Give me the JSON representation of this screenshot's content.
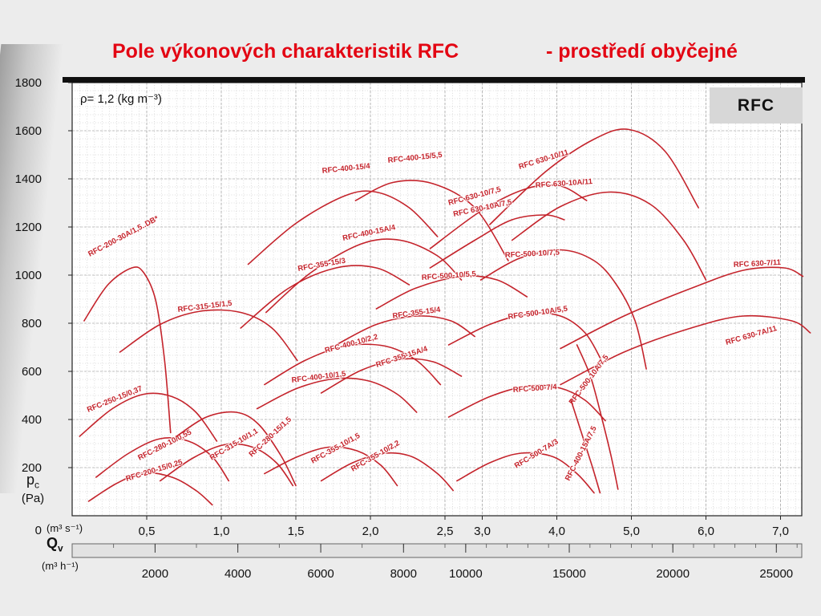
{
  "title": {
    "main": "Pole výkonových charakteristik RFC",
    "suffix": "- prostředí obyčejné"
  },
  "annotations": {
    "density": "ρ= 1,2 (kg m⁻³)",
    "series_box": "RFC"
  },
  "axes": {
    "y_label_main": "p",
    "y_label_sub": "c",
    "y_label_unit": "(Pa)",
    "x1_unit": "(m³ s⁻¹)",
    "x2_label_main": "Q",
    "x2_label_sub": "v",
    "x2_unit": "(m³ h⁻¹)"
  },
  "colors": {
    "curve_red": "#c4232b",
    "title_red": "#e30613"
  },
  "chart_data": {
    "type": "line",
    "title": "Pole výkonových charakteristik RFC - prostředí obyčejné",
    "xlabel": "Qv (m³ s⁻¹) / (m³ h⁻¹)",
    "ylabel": "pc (Pa)",
    "ylim": [
      0,
      1800
    ],
    "grid": true,
    "x_scale_note": "piecewise linear: 0-2.5 m3/s expanded, above 2.5 m3/s compressed 2x",
    "y_ticks": [
      1800,
      1600,
      1400,
      1200,
      1000,
      800,
      600,
      400,
      200,
      0
    ],
    "x1": {
      "unit": "m³/s",
      "ticks": [
        {
          "v": "0,5",
          "q": 0.5
        },
        {
          "v": "1,0",
          "q": 1.0
        },
        {
          "v": "1,5",
          "q": 1.5
        },
        {
          "v": "2,0",
          "q": 2.0
        },
        {
          "v": "2,5",
          "q": 2.5
        },
        {
          "v": "3,0",
          "q": 3.0
        },
        {
          "v": "4,0",
          "q": 4.0
        },
        {
          "v": "5,0",
          "q": 5.0
        },
        {
          "v": "6,0",
          "q": 6.0
        },
        {
          "v": "7,0",
          "q": 7.0
        }
      ]
    },
    "x2": {
      "unit": "m³/h",
      "ticks": [
        {
          "v": "2000",
          "q": 0.556
        },
        {
          "v": "4000",
          "q": 1.111
        },
        {
          "v": "6000",
          "q": 1.667
        },
        {
          "v": "8000",
          "q": 2.222
        },
        {
          "v": "10000",
          "q": 2.778
        },
        {
          "v": "15000",
          "q": 4.167
        },
        {
          "v": "20000",
          "q": 5.556
        },
        {
          "v": "25000",
          "q": 6.944
        }
      ]
    },
    "series": [
      {
        "name": "RFC-200-30A/1,5..DB*",
        "label": {
          "x": 112,
          "y": 320,
          "rot": -28
        },
        "points": [
          [
            0.08,
            810
          ],
          [
            0.24,
            960
          ],
          [
            0.4,
            1030
          ],
          [
            0.48,
            1010
          ],
          [
            0.56,
            895
          ],
          [
            0.62,
            645
          ],
          [
            0.66,
            345
          ]
        ]
      },
      {
        "name": "RFC-400-15/4",
        "label": {
          "x": 402,
          "y": 216,
          "rot": -6
        },
        "points": [
          [
            1.18,
            1045
          ],
          [
            1.5,
            1215
          ],
          [
            1.83,
            1330
          ],
          [
            2.04,
            1345
          ],
          [
            2.26,
            1280
          ],
          [
            2.45,
            1160
          ]
        ]
      },
      {
        "name": "RFC-400-15/5,5",
        "label": {
          "x": 484,
          "y": 203,
          "rot": -6
        },
        "points": [
          [
            1.9,
            1310
          ],
          [
            2.15,
            1385
          ],
          [
            2.42,
            1380
          ],
          [
            2.9,
            1280
          ],
          [
            3.35,
            1060
          ]
        ]
      },
      {
        "name": "RFC 630-10/11",
        "label": {
          "x": 648,
          "y": 211,
          "rot": -17
        },
        "points": [
          [
            3.1,
            1210
          ],
          [
            3.85,
            1430
          ],
          [
            4.5,
            1565
          ],
          [
            4.97,
            1605
          ],
          [
            5.45,
            1515
          ],
          [
            5.9,
            1280
          ]
        ]
      },
      {
        "name": "RFC 630-10/7,5",
        "label": {
          "x": 560,
          "y": 256,
          "rot": -15
        },
        "points": [
          [
            2.4,
            1110
          ],
          [
            3.0,
            1270
          ],
          [
            3.6,
            1360
          ],
          [
            4.05,
            1370
          ],
          [
            4.4,
            1310
          ]
        ]
      },
      {
        "name": "RFC 630-10A/11",
        "label": {
          "x": 668,
          "y": 234,
          "rot": -4
        },
        "points": [
          [
            3.4,
            1145
          ],
          [
            4.05,
            1285
          ],
          [
            4.7,
            1345
          ],
          [
            5.25,
            1295
          ],
          [
            5.7,
            1145
          ],
          [
            6.0,
            980
          ]
        ]
      },
      {
        "name": "RFC 630-10A/7,5",
        "label": {
          "x": 566,
          "y": 270,
          "rot": -12
        },
        "points": [
          [
            2.4,
            1030
          ],
          [
            2.9,
            1145
          ],
          [
            3.4,
            1230
          ],
          [
            3.85,
            1250
          ],
          [
            4.1,
            1230
          ]
        ]
      },
      {
        "name": "RFC-400-15A/4",
        "label": {
          "x": 428,
          "y": 300,
          "rot": -12
        },
        "points": [
          [
            1.3,
            845
          ],
          [
            1.6,
            1010
          ],
          [
            1.94,
            1130
          ],
          [
            2.2,
            1145
          ],
          [
            2.45,
            1080
          ],
          [
            2.72,
            980
          ]
        ]
      },
      {
        "name": "RFC-355-15/3",
        "label": {
          "x": 372,
          "y": 338,
          "rot": -10
        },
        "points": [
          [
            1.13,
            780
          ],
          [
            1.45,
            945
          ],
          [
            1.77,
            1030
          ],
          [
            2.04,
            1030
          ],
          [
            2.26,
            960
          ]
        ]
      },
      {
        "name": "RFC-500-10/5,5",
        "label": {
          "x": 526,
          "y": 349,
          "rot": -4
        },
        "points": [
          [
            2.04,
            860
          ],
          [
            2.3,
            945
          ],
          [
            2.72,
            995
          ],
          [
            3.2,
            980
          ],
          [
            3.6,
            910
          ]
        ]
      },
      {
        "name": "RFC-500-10/7,5",
        "label": {
          "x": 630,
          "y": 321,
          "rot": -3
        },
        "points": [
          [
            2.98,
            980
          ],
          [
            3.5,
            1070
          ],
          [
            4.05,
            1105
          ],
          [
            4.5,
            1060
          ],
          [
            4.8,
            960
          ],
          [
            5.05,
            810
          ],
          [
            5.2,
            610
          ]
        ]
      },
      {
        "name": "RFC 630-7/11",
        "label": {
          "x": 915,
          "y": 333,
          "rot": -3
        },
        "points": [
          [
            4.05,
            695
          ],
          [
            4.9,
            830
          ],
          [
            5.8,
            945
          ],
          [
            6.5,
            1020
          ],
          [
            7.05,
            1030
          ],
          [
            7.3,
            995
          ]
        ]
      },
      {
        "name": "RFC-315-15/1,5",
        "label": {
          "x": 222,
          "y": 389,
          "rot": -7
        },
        "points": [
          [
            0.32,
            680
          ],
          [
            0.59,
            795
          ],
          [
            0.86,
            850
          ],
          [
            1.13,
            845
          ],
          [
            1.34,
            780
          ],
          [
            1.51,
            645
          ]
        ]
      },
      {
        "name": "RFC-355-15/4",
        "label": {
          "x": 490,
          "y": 397,
          "rot": -8
        },
        "points": [
          [
            1.77,
            710
          ],
          [
            2.04,
            795
          ],
          [
            2.31,
            830
          ],
          [
            2.58,
            810
          ],
          [
            2.9,
            745
          ]
        ]
      },
      {
        "name": "RFC-500-10A/5,5",
        "label": {
          "x": 634,
          "y": 398,
          "rot": -8
        },
        "points": [
          [
            2.55,
            710
          ],
          [
            3.1,
            795
          ],
          [
            3.63,
            840
          ],
          [
            4.05,
            830
          ],
          [
            4.38,
            760
          ],
          [
            4.6,
            645
          ]
        ]
      },
      {
        "name": "RFC 630-7A/11",
        "label": {
          "x": 906,
          "y": 430,
          "rot": -16
        },
        "points": [
          [
            4.05,
            545
          ],
          [
            4.9,
            680
          ],
          [
            5.8,
            780
          ],
          [
            6.5,
            830
          ],
          [
            7.15,
            810
          ],
          [
            7.4,
            760
          ]
        ]
      },
      {
        "name": "RFC-400-10/2,2",
        "label": {
          "x": 406,
          "y": 440,
          "rot": -15
        },
        "points": [
          [
            1.29,
            545
          ],
          [
            1.56,
            645
          ],
          [
            1.83,
            705
          ],
          [
            2.1,
            705
          ],
          [
            2.31,
            645
          ],
          [
            2.47,
            545
          ]
        ]
      },
      {
        "name": "RFC-355-15A/4",
        "label": {
          "x": 470,
          "y": 458,
          "rot": -18
        },
        "points": [
          [
            1.67,
            510
          ],
          [
            1.94,
            605
          ],
          [
            2.2,
            650
          ],
          [
            2.42,
            640
          ],
          [
            2.72,
            580
          ]
        ]
      },
      {
        "name": "RFC-500-10A/7,5",
        "label": {
          "x": 714,
          "y": 505,
          "rot": -53
        },
        "points": [
          [
            4.27,
            710
          ],
          [
            4.45,
            580
          ],
          [
            4.6,
            410
          ],
          [
            4.73,
            245
          ],
          [
            4.82,
            110
          ]
        ]
      },
      {
        "name": "RFC-250-15/0,37",
        "label": {
          "x": 110,
          "y": 514,
          "rot": -22
        },
        "points": [
          [
            0.05,
            330
          ],
          [
            0.27,
            445
          ],
          [
            0.48,
            505
          ],
          [
            0.67,
            495
          ],
          [
            0.83,
            430
          ],
          [
            0.97,
            310
          ]
        ]
      },
      {
        "name": "RFC-400-10/1,5",
        "label": {
          "x": 364,
          "y": 477,
          "rot": -7
        },
        "points": [
          [
            1.24,
            445
          ],
          [
            1.51,
            530
          ],
          [
            1.77,
            570
          ],
          [
            1.99,
            560
          ],
          [
            2.18,
            505
          ],
          [
            2.31,
            430
          ]
        ]
      },
      {
        "name": "RFC-500-7/4",
        "label": {
          "x": 640,
          "y": 489,
          "rot": -4
        },
        "points": [
          [
            2.55,
            410
          ],
          [
            3.1,
            495
          ],
          [
            3.63,
            540
          ],
          [
            4.05,
            530
          ],
          [
            4.38,
            480
          ],
          [
            4.65,
            395
          ]
        ]
      },
      {
        "name": "RFC-280-10/0,55",
        "label": {
          "x": 174,
          "y": 574,
          "rot": -27
        },
        "points": [
          [
            0.16,
            160
          ],
          [
            0.38,
            260
          ],
          [
            0.59,
            320
          ],
          [
            0.78,
            310
          ],
          [
            0.94,
            245
          ],
          [
            1.05,
            145
          ]
        ]
      },
      {
        "name": "RFC-315-10/1,1",
        "label": {
          "x": 264,
          "y": 574,
          "rot": -31
        },
        "points": [
          [
            0.59,
            145
          ],
          [
            0.81,
            240
          ],
          [
            1.02,
            295
          ],
          [
            1.21,
            285
          ],
          [
            1.37,
            220
          ],
          [
            1.48,
            125
          ]
        ]
      },
      {
        "name": "RFC-280-15/1,5",
        "label": {
          "x": 314,
          "y": 570,
          "rot": -43
        },
        "points": [
          [
            0.7,
            330
          ],
          [
            0.9,
            410
          ],
          [
            1.1,
            430
          ],
          [
            1.25,
            380
          ],
          [
            1.4,
            250
          ],
          [
            1.5,
            125
          ]
        ]
      },
      {
        "name": "RFC-355-10/1,5",
        "label": {
          "x": 390,
          "y": 578,
          "rot": -29
        },
        "points": [
          [
            1.29,
            175
          ],
          [
            1.51,
            245
          ],
          [
            1.72,
            285
          ],
          [
            1.91,
            270
          ],
          [
            2.07,
            210
          ],
          [
            2.18,
            125
          ]
        ]
      },
      {
        "name": "RFC-355-10/2,2",
        "label": {
          "x": 440,
          "y": 588,
          "rot": -30
        },
        "points": [
          [
            1.67,
            145
          ],
          [
            1.88,
            220
          ],
          [
            2.1,
            260
          ],
          [
            2.28,
            245
          ],
          [
            2.45,
            175
          ],
          [
            2.61,
            105
          ]
        ]
      },
      {
        "name": "RFC-500-7A/3",
        "label": {
          "x": 644,
          "y": 584,
          "rot": -31
        },
        "points": [
          [
            2.66,
            145
          ],
          [
            3.1,
            220
          ],
          [
            3.52,
            260
          ],
          [
            3.95,
            245
          ],
          [
            4.27,
            175
          ],
          [
            4.5,
            95
          ]
        ]
      },
      {
        "name": "RFC-400-15A/7,5",
        "label": {
          "x": 710,
          "y": 600,
          "rot": -63
        },
        "points": [
          [
            4.19,
            480
          ],
          [
            4.33,
            345
          ],
          [
            4.47,
            210
          ],
          [
            4.58,
            95
          ]
        ]
      },
      {
        "name": "RFC-200-15/0,25",
        "label": {
          "x": 158,
          "y": 600,
          "rot": -17
        },
        "points": [
          [
            0.11,
            60
          ],
          [
            0.3,
            135
          ],
          [
            0.48,
            178
          ],
          [
            0.67,
            160
          ],
          [
            0.83,
            105
          ],
          [
            0.94,
            45
          ]
        ]
      }
    ]
  }
}
